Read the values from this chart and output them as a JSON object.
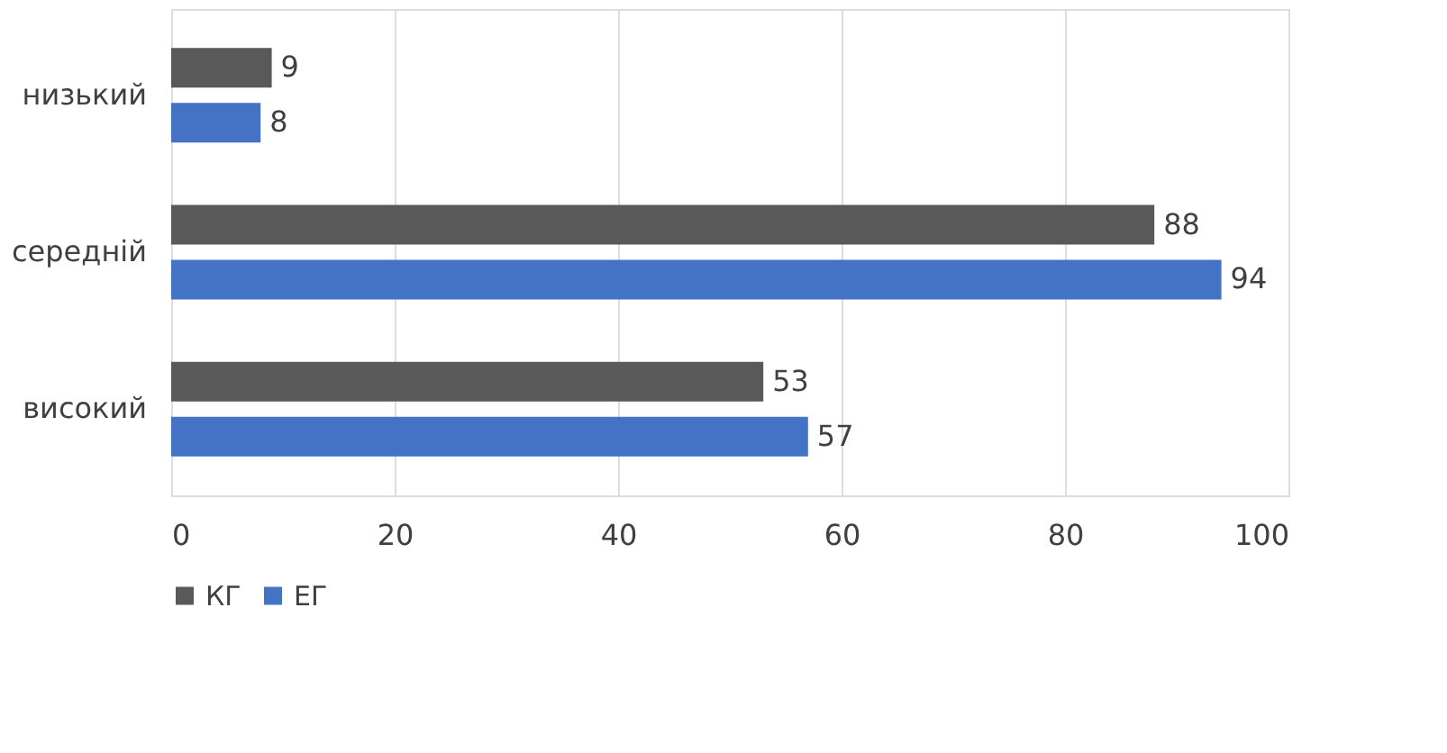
{
  "chart_data": {
    "type": "bar",
    "orientation": "horizontal",
    "categories": [
      "низький",
      "середній",
      "високий"
    ],
    "series": [
      {
        "name": "КГ",
        "color": "#595959",
        "values": [
          9,
          88,
          53
        ]
      },
      {
        "name": "ЕГ",
        "color": "#4472c4",
        "values": [
          8,
          94,
          57
        ]
      }
    ],
    "xlim": [
      0,
      100
    ],
    "xticks": [
      0,
      20,
      40,
      60,
      80,
      100
    ],
    "grid": "x",
    "legend": "bottom",
    "data_labels": true
  }
}
